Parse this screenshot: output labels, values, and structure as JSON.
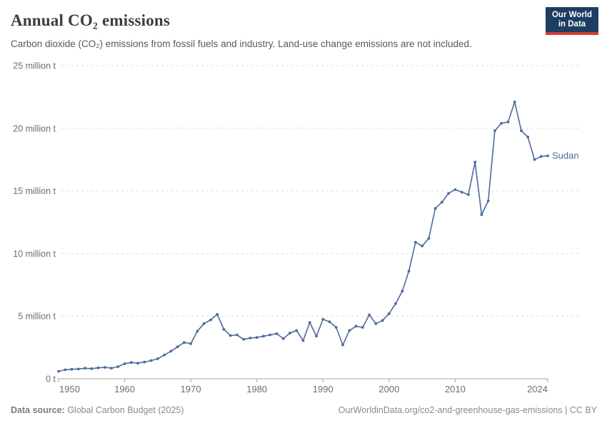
{
  "header": {
    "title": "Annual CO₂ emissions",
    "subtitle": "Carbon dioxide (CO₂) emissions from fossil fuels and industry. Land-use change emissions are not included.",
    "logo_line1": "Our World",
    "logo_line2": "in Data",
    "logo_bg": "#1d3d63",
    "logo_stripe": "#cf3e32"
  },
  "chart_data": {
    "type": "line",
    "title": "Annual CO₂ emissions",
    "entity": "Sudan",
    "series_label": "Sudan",
    "color": "#4c6a9c",
    "unit": "million tonnes",
    "xlim": [
      1950,
      2024
    ],
    "ylim": [
      0,
      25
    ],
    "x_ticks": [
      1950,
      1960,
      1970,
      1980,
      1990,
      2000,
      2010,
      2024
    ],
    "y_ticks": [
      0,
      5,
      10,
      15,
      20,
      25
    ],
    "y_tick_labels": [
      "0 t",
      "5 million t",
      "10 million t",
      "15 million t",
      "20 million t",
      "25 million t"
    ],
    "grid": "dashed-horizontal",
    "legend_position": "end-of-line-label",
    "years": [
      1950,
      1951,
      1952,
      1953,
      1954,
      1955,
      1956,
      1957,
      1958,
      1959,
      1960,
      1961,
      1962,
      1963,
      1964,
      1965,
      1966,
      1967,
      1968,
      1969,
      1970,
      1971,
      1972,
      1973,
      1974,
      1975,
      1976,
      1977,
      1978,
      1979,
      1980,
      1981,
      1982,
      1983,
      1984,
      1985,
      1986,
      1987,
      1988,
      1989,
      1990,
      1991,
      1992,
      1993,
      1994,
      1995,
      1996,
      1997,
      1998,
      1999,
      2000,
      2001,
      2002,
      2003,
      2004,
      2005,
      2006,
      2007,
      2008,
      2009,
      2010,
      2011,
      2012,
      2013,
      2014,
      2015,
      2016,
      2017,
      2018,
      2019,
      2020,
      2021,
      2022,
      2023,
      2024
    ],
    "values": [
      0.6,
      0.72,
      0.76,
      0.78,
      0.84,
      0.81,
      0.87,
      0.91,
      0.85,
      0.97,
      1.2,
      1.3,
      1.25,
      1.33,
      1.45,
      1.6,
      1.9,
      2.2,
      2.55,
      2.9,
      2.8,
      3.8,
      4.4,
      4.7,
      5.15,
      3.95,
      3.45,
      3.5,
      3.15,
      3.25,
      3.3,
      3.4,
      3.5,
      3.6,
      3.2,
      3.65,
      3.85,
      3.05,
      4.5,
      3.4,
      4.75,
      4.55,
      4.1,
      2.7,
      3.85,
      4.2,
      4.1,
      5.1,
      4.4,
      4.65,
      5.2,
      6.0,
      7.0,
      8.6,
      10.9,
      10.6,
      11.2,
      13.6,
      14.1,
      14.8,
      15.1,
      14.9,
      14.7,
      17.3,
      13.1,
      14.2,
      19.8,
      20.4,
      20.5,
      22.1,
      19.8,
      19.3,
      17.5,
      17.75,
      17.8
    ]
  },
  "footer": {
    "source_label": "Data source:",
    "source_value": " Global Carbon Budget (2025)",
    "right_text": "OurWorldinData.org/co2-and-greenhouse-gas-emissions | CC BY"
  }
}
